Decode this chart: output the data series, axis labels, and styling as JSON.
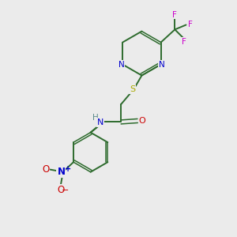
{
  "bg_color": "#ebebeb",
  "bond_color": "#2d6b2d",
  "N_color": "#0000cc",
  "S_color": "#aaaa00",
  "O_color": "#cc0000",
  "F_color": "#cc00cc",
  "H_color": "#5a8a8a",
  "figsize": [
    3.0,
    3.0
  ],
  "dpi": 100,
  "xlim": [
    0,
    10
  ],
  "ylim": [
    0,
    10
  ]
}
